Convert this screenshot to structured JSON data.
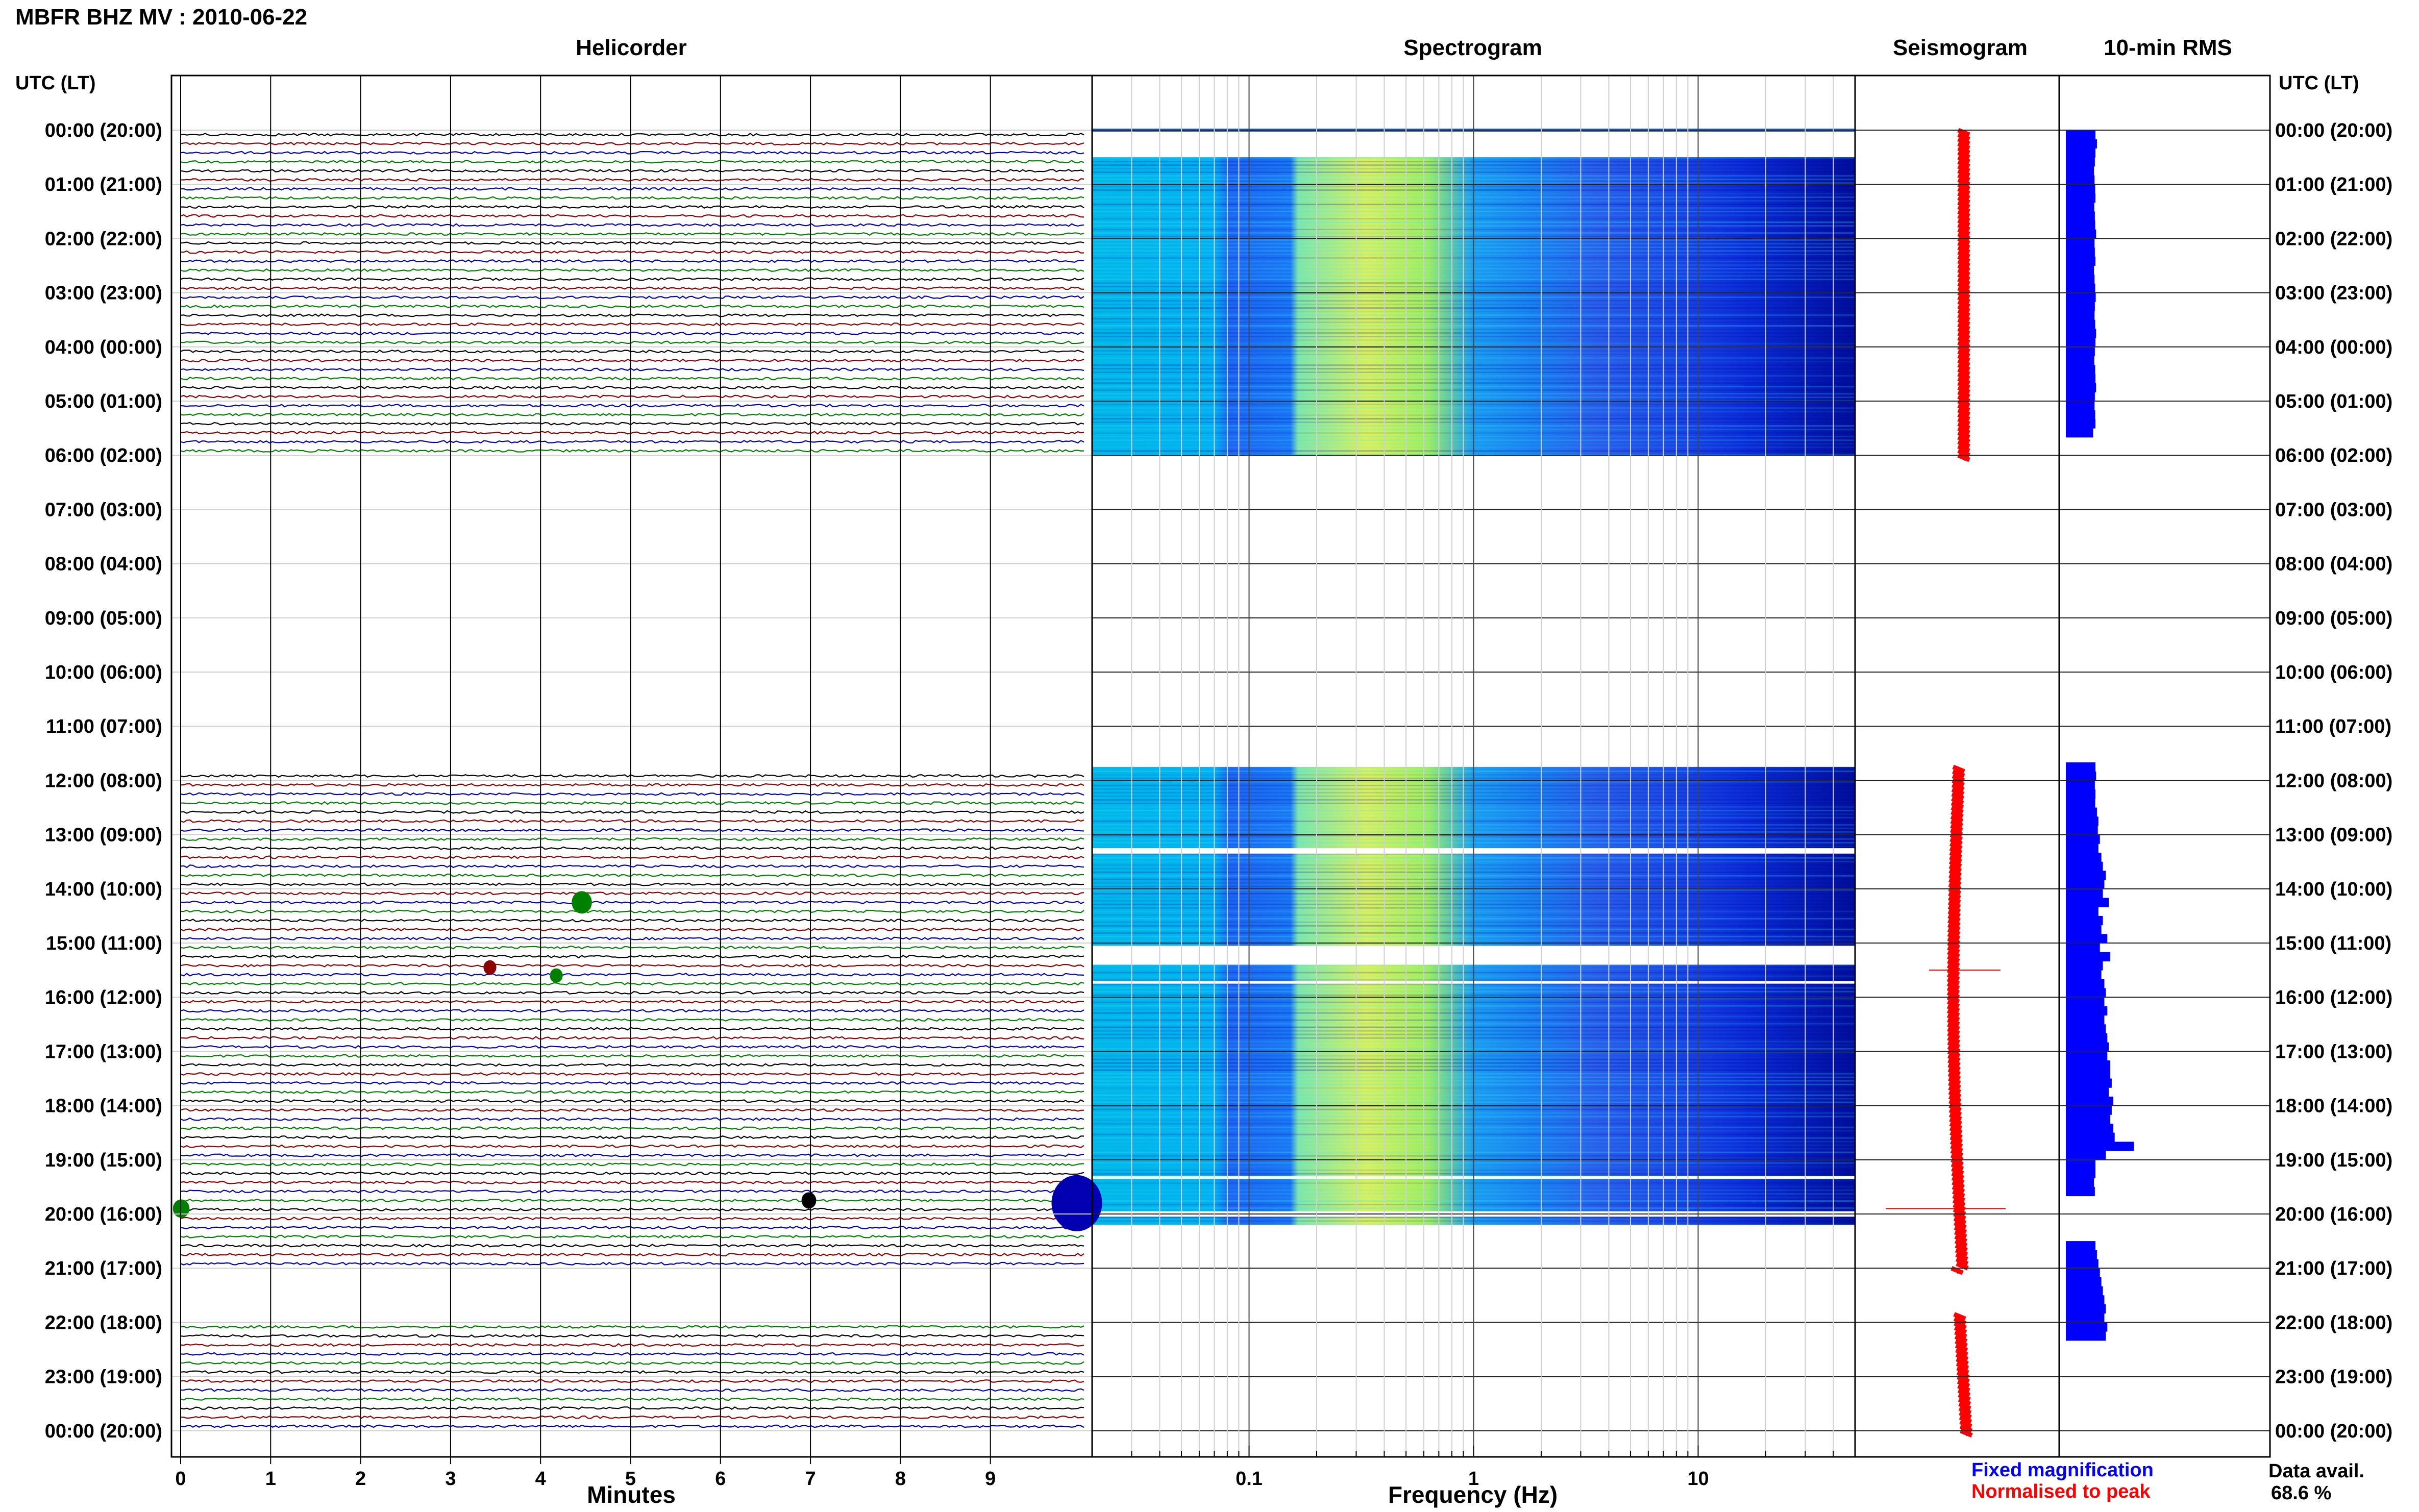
{
  "header": {
    "title": "MBFR BHZ MV : 2010-06-22",
    "tz_label": "UTC (LT)",
    "panels": [
      "Helicorder",
      "Spectrogram",
      "Seismogram",
      "10-min RMS"
    ]
  },
  "chart_data": {
    "type": "heatmap",
    "title": "MBFR BHZ MV : 2010-06-22",
    "hour_labels": [
      "00:00 (20:00)",
      "01:00 (21:00)",
      "02:00 (22:00)",
      "03:00 (23:00)",
      "04:00 (00:00)",
      "05:00 (01:00)",
      "06:00 (02:00)",
      "07:00 (03:00)",
      "08:00 (04:00)",
      "09:00 (05:00)",
      "10:00 (06:00)",
      "11:00 (07:00)",
      "12:00 (08:00)",
      "13:00 (09:00)",
      "14:00 (10:00)",
      "15:00 (11:00)",
      "16:00 (12:00)",
      "17:00 (13:00)",
      "18:00 (14:00)",
      "19:00 (15:00)",
      "20:00 (16:00)",
      "21:00 (17:00)",
      "22:00 (18:00)",
      "23:00 (19:00)",
      "00:00 (20:00)"
    ],
    "helicorder": {
      "xlabel": "Minutes",
      "xticks": [
        0,
        1,
        2,
        3,
        4,
        5,
        6,
        7,
        8,
        9
      ],
      "xlim": [
        0,
        10
      ],
      "trace_colors": [
        "#000000",
        "#8b0000",
        "#0000b0",
        "#008000"
      ],
      "data_segments_hours": [
        [
          0,
          6
        ],
        [
          11.75,
          21
        ],
        [
          21.85,
          24
        ]
      ]
    },
    "spectrogram": {
      "xlabel": "Frequency (Hz)",
      "xticks": [
        "0.1",
        "1",
        "10"
      ],
      "xlim": [
        0.02,
        50
      ],
      "log_x": true,
      "data_blocks_hours": [
        [
          0.5,
          6
        ],
        [
          11.75,
          13.25
        ],
        [
          13.35,
          15.05
        ],
        [
          15.4,
          15.7
        ],
        [
          15.75,
          19.3
        ],
        [
          19.35,
          19.95
        ],
        [
          20.05,
          20.2
        ]
      ]
    },
    "seismogram": {
      "series": [
        {
          "name": "Fixed magnification",
          "color": "#0000ff"
        },
        {
          "name": "Normalised to peak",
          "color": "#ff0000"
        }
      ]
    },
    "rms": {
      "title": "10-min RMS",
      "bar_color": "#0000ff",
      "bar_values": [
        1.0,
        1.05,
        1.0,
        0.98,
        0.95,
        0.97,
        0.99,
        1.0,
        0.96,
        0.98,
        0.99,
        1.02,
        0.97,
        0.98,
        1.0,
        0.95,
        0.97,
        0.99,
        1.01,
        0.98,
        0.97,
        0.99,
        1.02,
        1.0,
        0.98,
        0.96,
        0.99,
        1.0,
        1.02,
        0.98,
        0.97,
        0.99,
        1.0,
        0.92,
        0,
        0,
        0,
        0,
        0,
        0,
        0,
        0,
        0,
        0,
        0,
        0,
        0,
        0,
        0,
        0,
        0,
        0,
        0,
        0,
        0,
        0,
        0,
        0,
        0,
        0,
        0,
        0,
        0,
        0,
        0,
        0,
        0,
        0,
        0,
        0,
        1.0,
        1.02,
        0.98,
        1.0,
        0.99,
        1.05,
        1.1,
        1.08,
        1.15,
        1.1,
        1.2,
        1.25,
        1.35,
        1.3,
        1.25,
        1.45,
        1.1,
        1.25,
        1.2,
        1.4,
        1.15,
        1.5,
        1.25,
        1.2,
        1.3,
        1.35,
        1.3,
        1.4,
        1.3,
        1.35,
        1.4,
        1.45,
        1.4,
        1.5,
        1.5,
        1.55,
        1.45,
        1.6,
        1.55,
        1.5,
        1.6,
        1.65,
        2.3,
        1.35,
        1.0,
        1.0,
        0.95,
        0.98,
        0,
        0,
        0,
        0,
        0,
        1.0,
        1.05,
        1.1,
        1.15,
        1.2,
        1.25,
        1.3,
        1.35,
        1.3,
        1.4,
        1.35
      ]
    },
    "footer": {
      "data_avail_label": "Data avail.",
      "data_avail_value": "68.6 %"
    }
  }
}
